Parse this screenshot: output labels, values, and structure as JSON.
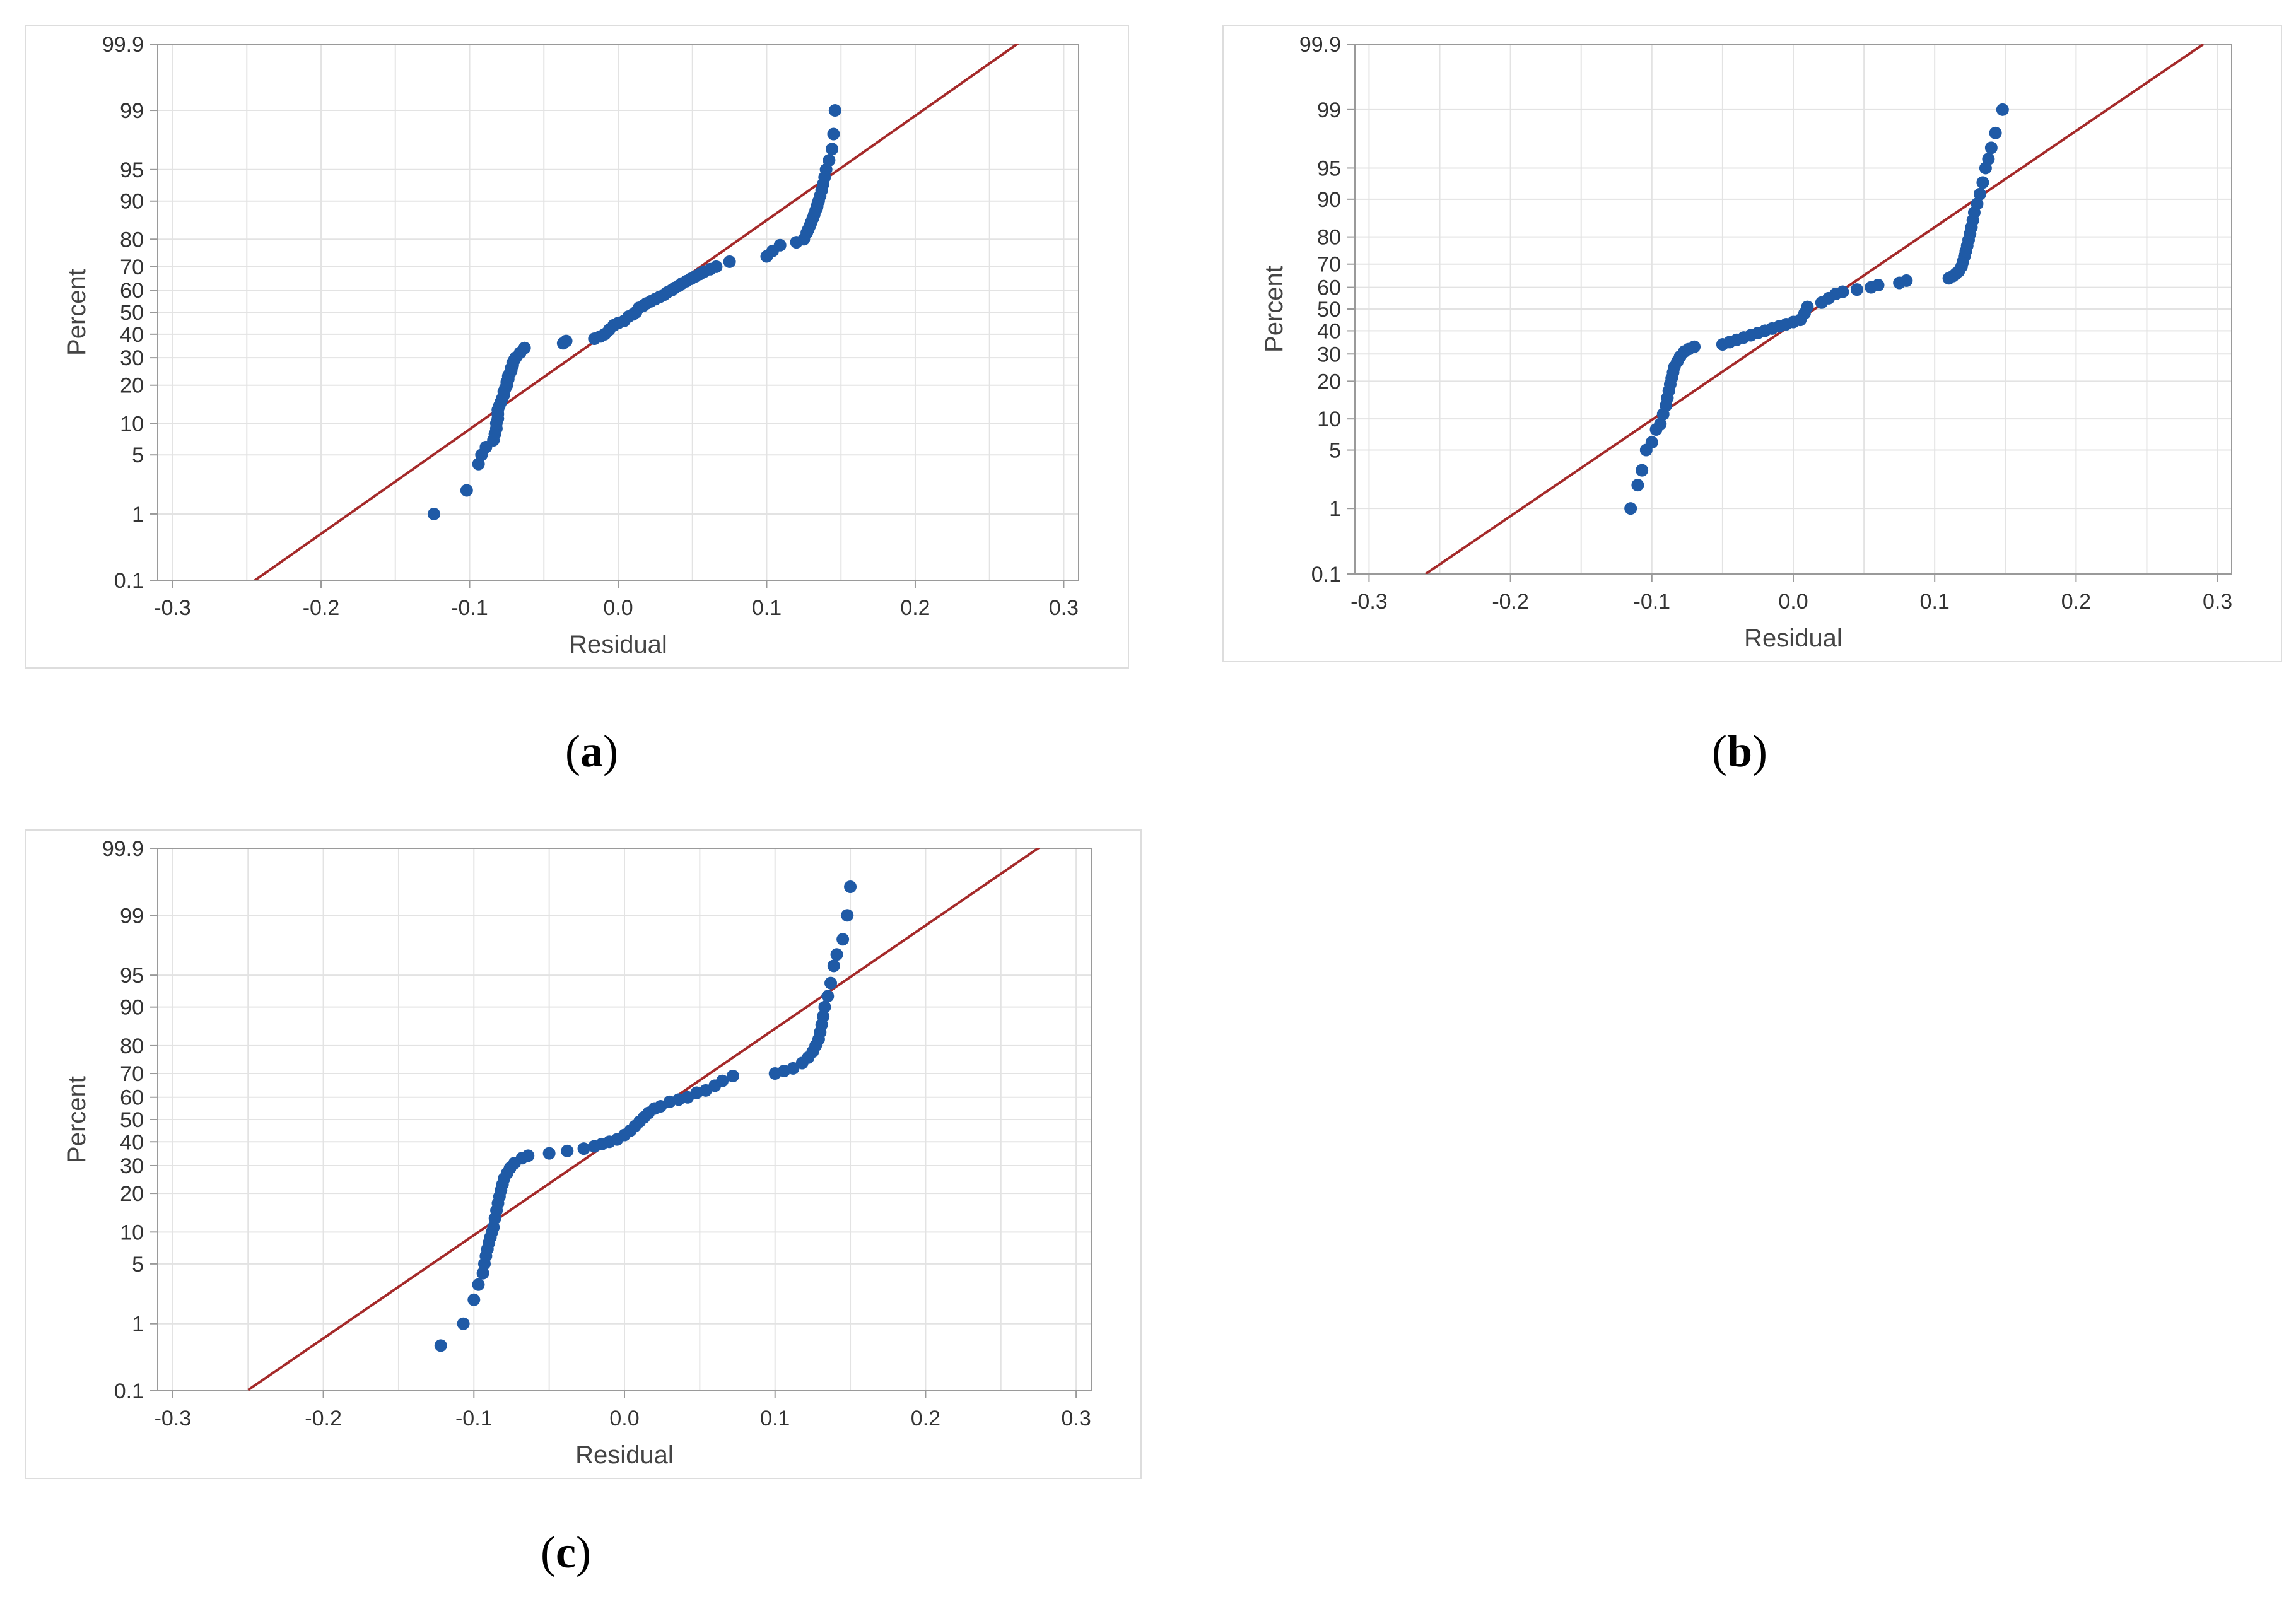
{
  "colors": {
    "point": "#1F5AA6",
    "fit_line": "#A52A2A",
    "grid": "#E3E3E3",
    "axis": "#9A9A9A",
    "frame": "#DDDDDD"
  },
  "chart_data": [
    {
      "type": "scatter",
      "subtype": "normal-probability-plot",
      "caption": "a",
      "xlabel": "Residual",
      "ylabel": "Percent",
      "xlim": [
        -0.31,
        0.31
      ],
      "x_ticks": [
        "-0.3",
        "-0.2",
        "-0.1",
        "0.0",
        "0.1",
        "0.2",
        "0.3"
      ],
      "y_ticks": [
        "0.1",
        "1",
        "5",
        "10",
        "20",
        "30",
        "40",
        "50",
        "60",
        "70",
        "80",
        "90",
        "95",
        "99",
        "99.9"
      ],
      "fit_line": {
        "x0": -0.245,
        "x1": 0.27,
        "mean": 0.012,
        "sigma": 0.083
      },
      "points": [
        [
          -0.124,
          1
        ],
        [
          -0.102,
          2
        ],
        [
          -0.094,
          4
        ],
        [
          -0.092,
          5
        ],
        [
          -0.089,
          6
        ],
        [
          -0.084,
          7
        ],
        [
          -0.083,
          8
        ],
        [
          -0.082,
          9
        ],
        [
          -0.082,
          10
        ],
        [
          -0.081,
          11
        ],
        [
          -0.081,
          12
        ],
        [
          -0.081,
          13
        ],
        [
          -0.08,
          14
        ],
        [
          -0.079,
          15
        ],
        [
          -0.078,
          16
        ],
        [
          -0.077,
          17
        ],
        [
          -0.077,
          18
        ],
        [
          -0.076,
          19
        ],
        [
          -0.075,
          20
        ],
        [
          -0.075,
          21
        ],
        [
          -0.074,
          22
        ],
        [
          -0.074,
          23
        ],
        [
          -0.073,
          24
        ],
        [
          -0.072,
          25
        ],
        [
          -0.072,
          26
        ],
        [
          -0.071,
          27
        ],
        [
          -0.071,
          28
        ],
        [
          -0.07,
          29
        ],
        [
          -0.069,
          30
        ],
        [
          -0.066,
          32
        ],
        [
          -0.063,
          34
        ],
        [
          -0.037,
          36
        ],
        [
          -0.035,
          37
        ],
        [
          -0.016,
          38
        ],
        [
          -0.012,
          39
        ],
        [
          -0.009,
          40
        ],
        [
          -0.006,
          42
        ],
        [
          -0.003,
          44
        ],
        [
          0,
          45
        ],
        [
          0.004,
          46
        ],
        [
          0.007,
          48
        ],
        [
          0.01,
          49
        ],
        [
          0.012,
          50
        ],
        [
          0.014,
          52
        ],
        [
          0.017,
          53
        ],
        [
          0.019,
          54
        ],
        [
          0.022,
          55
        ],
        [
          0.025,
          56
        ],
        [
          0.028,
          57
        ],
        [
          0.031,
          58
        ],
        [
          0.033,
          59
        ],
        [
          0.036,
          60
        ],
        [
          0.038,
          61
        ],
        [
          0.041,
          62
        ],
        [
          0.043,
          63
        ],
        [
          0.046,
          64
        ],
        [
          0.049,
          65
        ],
        [
          0.052,
          66
        ],
        [
          0.055,
          67
        ],
        [
          0.058,
          68
        ],
        [
          0.062,
          69
        ],
        [
          0.066,
          70
        ],
        [
          0.075,
          72
        ],
        [
          0.1,
          74
        ],
        [
          0.104,
          76
        ],
        [
          0.109,
          78
        ],
        [
          0.12,
          79
        ],
        [
          0.125,
          80
        ],
        [
          0.127,
          82
        ],
        [
          0.128,
          83
        ],
        [
          0.129,
          84
        ],
        [
          0.13,
          85
        ],
        [
          0.131,
          86
        ],
        [
          0.132,
          87
        ],
        [
          0.133,
          88
        ],
        [
          0.134,
          89
        ],
        [
          0.135,
          90
        ],
        [
          0.136,
          91
        ],
        [
          0.137,
          92
        ],
        [
          0.138,
          93
        ],
        [
          0.139,
          94
        ],
        [
          0.14,
          95
        ],
        [
          0.142,
          96
        ],
        [
          0.144,
          97
        ],
        [
          0.145,
          98
        ],
        [
          0.146,
          99
        ]
      ]
    },
    {
      "type": "scatter",
      "subtype": "normal-probability-plot",
      "caption": "b",
      "xlabel": "Residual",
      "ylabel": "Percent",
      "xlim": [
        -0.31,
        0.31
      ],
      "x_ticks": [
        "-0.3",
        "-0.2",
        "-0.1",
        "0.0",
        "0.1",
        "0.2",
        "0.3"
      ],
      "y_ticks": [
        "0.1",
        "1",
        "5",
        "10",
        "20",
        "30",
        "40",
        "50",
        "60",
        "70",
        "80",
        "90",
        "95",
        "99",
        "99.9"
      ],
      "fit_line": {
        "x0": -0.26,
        "x1": 0.29,
        "mean": 0.015,
        "sigma": 0.089
      },
      "points": [
        [
          -0.115,
          1
        ],
        [
          -0.11,
          2
        ],
        [
          -0.107,
          3
        ],
        [
          -0.104,
          5
        ],
        [
          -0.1,
          6
        ],
        [
          -0.097,
          8
        ],
        [
          -0.094,
          9
        ],
        [
          -0.092,
          11
        ],
        [
          -0.09,
          13
        ],
        [
          -0.089,
          15
        ],
        [
          -0.088,
          17
        ],
        [
          -0.087,
          19
        ],
        [
          -0.086,
          21
        ],
        [
          -0.085,
          23
        ],
        [
          -0.084,
          25
        ],
        [
          -0.082,
          27
        ],
        [
          -0.08,
          29
        ],
        [
          -0.077,
          31
        ],
        [
          -0.074,
          32
        ],
        [
          -0.07,
          33
        ],
        [
          -0.05,
          34
        ],
        [
          -0.045,
          35
        ],
        [
          -0.04,
          36
        ],
        [
          -0.035,
          37
        ],
        [
          -0.03,
          38
        ],
        [
          -0.025,
          39
        ],
        [
          -0.02,
          40
        ],
        [
          -0.015,
          41
        ],
        [
          -0.01,
          42
        ],
        [
          -0.005,
          43
        ],
        [
          0,
          44
        ],
        [
          0.005,
          45
        ],
        [
          0.008,
          48
        ],
        [
          0.01,
          51
        ],
        [
          0.02,
          53
        ],
        [
          0.025,
          55
        ],
        [
          0.03,
          57
        ],
        [
          0.035,
          58
        ],
        [
          0.045,
          59
        ],
        [
          0.055,
          60
        ],
        [
          0.06,
          61
        ],
        [
          0.075,
          62
        ],
        [
          0.08,
          63
        ],
        [
          0.11,
          64
        ],
        [
          0.113,
          65
        ],
        [
          0.115,
          66
        ],
        [
          0.117,
          67
        ],
        [
          0.119,
          69
        ],
        [
          0.12,
          71
        ],
        [
          0.121,
          73
        ],
        [
          0.122,
          75
        ],
        [
          0.123,
          77
        ],
        [
          0.124,
          79
        ],
        [
          0.125,
          81
        ],
        [
          0.126,
          83
        ],
        [
          0.127,
          85
        ],
        [
          0.128,
          87
        ],
        [
          0.13,
          89
        ],
        [
          0.132,
          91
        ],
        [
          0.134,
          93
        ],
        [
          0.136,
          95
        ],
        [
          0.138,
          96
        ],
        [
          0.14,
          97
        ],
        [
          0.143,
          98
        ],
        [
          0.148,
          99
        ]
      ]
    },
    {
      "type": "scatter",
      "subtype": "normal-probability-plot",
      "caption": "c",
      "xlabel": "Residual",
      "ylabel": "Percent",
      "xlim": [
        -0.31,
        0.31
      ],
      "x_ticks": [
        "-0.3",
        "-0.2",
        "-0.1",
        "0.0",
        "0.1",
        "0.2",
        "0.3"
      ],
      "y_ticks": [
        "0.1",
        "1",
        "5",
        "10",
        "20",
        "30",
        "40",
        "50",
        "60",
        "70",
        "80",
        "90",
        "95",
        "99",
        "99.9"
      ],
      "fit_line": {
        "x0": -0.25,
        "x1": 0.28,
        "mean": 0.012,
        "sigma": 0.085
      },
      "points": [
        [
          -0.122,
          0.5
        ],
        [
          -0.107,
          1
        ],
        [
          -0.1,
          2
        ],
        [
          -0.097,
          3
        ],
        [
          -0.094,
          4
        ],
        [
          -0.093,
          5
        ],
        [
          -0.092,
          6
        ],
        [
          -0.091,
          7
        ],
        [
          -0.09,
          8
        ],
        [
          -0.089,
          9
        ],
        [
          -0.088,
          10
        ],
        [
          -0.087,
          11
        ],
        [
          -0.086,
          13
        ],
        [
          -0.085,
          15
        ],
        [
          -0.084,
          17
        ],
        [
          -0.083,
          19
        ],
        [
          -0.082,
          21
        ],
        [
          -0.081,
          23
        ],
        [
          -0.08,
          25
        ],
        [
          -0.078,
          27
        ],
        [
          -0.076,
          29
        ],
        [
          -0.073,
          31
        ],
        [
          -0.068,
          33
        ],
        [
          -0.064,
          34
        ],
        [
          -0.05,
          35
        ],
        [
          -0.038,
          36
        ],
        [
          -0.027,
          37
        ],
        [
          -0.02,
          38
        ],
        [
          -0.015,
          39
        ],
        [
          -0.01,
          40
        ],
        [
          -0.005,
          41
        ],
        [
          0,
          43
        ],
        [
          0.004,
          45
        ],
        [
          0.007,
          47
        ],
        [
          0.01,
          49
        ],
        [
          0.013,
          51
        ],
        [
          0.016,
          53
        ],
        [
          0.02,
          55
        ],
        [
          0.024,
          56
        ],
        [
          0.03,
          58
        ],
        [
          0.036,
          59
        ],
        [
          0.042,
          60
        ],
        [
          0.048,
          62
        ],
        [
          0.054,
          63
        ],
        [
          0.06,
          65
        ],
        [
          0.065,
          67
        ],
        [
          0.072,
          69
        ],
        [
          0.1,
          70
        ],
        [
          0.106,
          71
        ],
        [
          0.112,
          72
        ],
        [
          0.118,
          74
        ],
        [
          0.122,
          76
        ],
        [
          0.125,
          78
        ],
        [
          0.127,
          80
        ],
        [
          0.129,
          82
        ],
        [
          0.13,
          84
        ],
        [
          0.131,
          86
        ],
        [
          0.132,
          88
        ],
        [
          0.133,
          90
        ],
        [
          0.135,
          92
        ],
        [
          0.137,
          94
        ],
        [
          0.139,
          96
        ],
        [
          0.141,
          97
        ],
        [
          0.145,
          98
        ],
        [
          0.148,
          99
        ],
        [
          0.15,
          99.6
        ]
      ]
    }
  ]
}
